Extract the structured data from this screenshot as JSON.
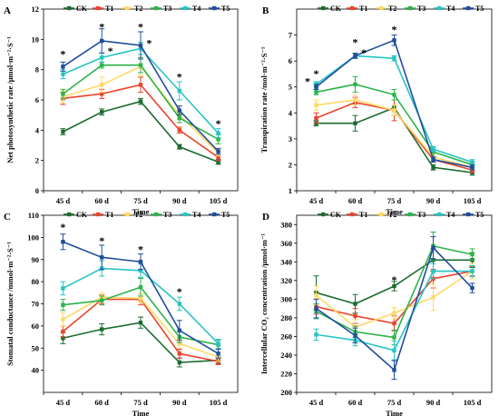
{
  "chart_data": [
    {
      "panel": "A",
      "type": "line",
      "categories": [
        "45 d",
        "60 d",
        "75 d",
        "90 d",
        "105 d"
      ],
      "xlabel": "Time",
      "ylabel": "Net photosynthetic rate /μmol·m⁻²·S⁻¹",
      "ylim": [
        0,
        12
      ],
      "yticks": [
        0,
        2,
        4,
        6,
        8,
        10,
        12
      ],
      "legend": "top",
      "series": [
        {
          "name": "CK",
          "color": "#1b6b2f",
          "values": [
            3.9,
            5.2,
            5.9,
            2.9,
            1.9
          ],
          "errors": [
            0.2,
            0.2,
            0.2,
            0.15,
            0.15
          ]
        },
        {
          "name": "T1",
          "color": "#e8452c",
          "values": [
            6.1,
            6.4,
            7.0,
            4.0,
            2.2
          ],
          "errors": [
            0.4,
            0.3,
            0.5,
            0.2,
            0.2
          ]
        },
        {
          "name": "T2",
          "color": "#ffd966",
          "values": [
            6.2,
            7.0,
            8.2,
            5.0,
            2.5
          ],
          "errors": [
            0.4,
            0.5,
            0.6,
            0.3,
            0.2
          ]
        },
        {
          "name": "T3",
          "color": "#2db34a",
          "values": [
            6.4,
            8.3,
            8.3,
            4.8,
            3.4
          ],
          "errors": [
            0.3,
            0.2,
            0.5,
            0.3,
            0.3
          ]
        },
        {
          "name": "T4",
          "color": "#27c4c4",
          "values": [
            7.7,
            8.8,
            9.4,
            6.6,
            3.8
          ],
          "errors": [
            0.3,
            0.3,
            0.4,
            0.6,
            0.3
          ]
        },
        {
          "name": "T5",
          "color": "#1f4e9c",
          "values": [
            8.2,
            9.9,
            9.6,
            5.3,
            2.6
          ],
          "errors": [
            0.3,
            0.8,
            0.9,
            0.3,
            0.2
          ]
        }
      ],
      "markers": [
        {
          "x": "45 d",
          "y": 9.1,
          "label": "*"
        },
        {
          "x": "60 d",
          "y": 10.9,
          "label": "*"
        },
        {
          "x": "60 d",
          "y": 9.3,
          "label": "*",
          "dx": 0.22
        },
        {
          "x": "75 d",
          "y": 10.9,
          "label": "*"
        },
        {
          "x": "75 d",
          "y": 9.8,
          "label": "*",
          "dx": 0.22
        },
        {
          "x": "90 d",
          "y": 7.6,
          "label": "*"
        },
        {
          "x": "105 d",
          "y": 4.5,
          "label": "*"
        }
      ]
    },
    {
      "panel": "B",
      "type": "line",
      "categories": [
        "45 d",
        "60 d",
        "75 d",
        "90 d",
        "105 d"
      ],
      "xlabel": "Time",
      "ylabel": "Transpiration rate /mol·m⁻²·S⁻¹",
      "ylim": [
        1,
        8
      ],
      "yticks": [
        1,
        2,
        3,
        4,
        5,
        6,
        7
      ],
      "legend": "top",
      "series": [
        {
          "name": "CK",
          "color": "#1b6b2f",
          "values": [
            3.6,
            3.6,
            4.2,
            1.9,
            1.7
          ],
          "errors": [
            0.1,
            0.3,
            0.3,
            0.1,
            0.1
          ]
        },
        {
          "name": "T1",
          "color": "#e8452c",
          "values": [
            3.8,
            4.4,
            4.1,
            2.2,
            1.8
          ],
          "errors": [
            0.2,
            0.2,
            0.4,
            0.1,
            0.1
          ]
        },
        {
          "name": "T2",
          "color": "#ffd966",
          "values": [
            4.3,
            4.5,
            4.1,
            2.3,
            1.9
          ],
          "errors": [
            0.2,
            0.2,
            0.2,
            0.1,
            0.1
          ]
        },
        {
          "name": "T3",
          "color": "#2db34a",
          "values": [
            4.8,
            5.1,
            4.7,
            2.5,
            2.0
          ],
          "errors": [
            0.1,
            0.3,
            0.2,
            0.2,
            0.1
          ]
        },
        {
          "name": "T4",
          "color": "#27c4c4",
          "values": [
            5.1,
            6.2,
            6.1,
            2.6,
            2.1
          ],
          "errors": [
            0.1,
            0.1,
            0.1,
            0.1,
            0.1
          ]
        },
        {
          "name": "T5",
          "color": "#1f4e9c",
          "values": [
            5.0,
            6.2,
            6.8,
            2.2,
            1.9
          ],
          "errors": [
            0.1,
            0.1,
            0.2,
            0.1,
            0.1
          ]
        }
      ],
      "markers": [
        {
          "x": "45 d",
          "y": 5.25,
          "label": "*",
          "dx": -0.22
        },
        {
          "x": "45 d",
          "y": 5.55,
          "label": "*"
        },
        {
          "x": "60 d",
          "y": 6.75,
          "label": "*"
        },
        {
          "x": "60 d",
          "y": 6.35,
          "label": "*",
          "dx": 0.22
        },
        {
          "x": "75 d",
          "y": 7.25,
          "label": "*"
        }
      ]
    },
    {
      "panel": "C",
      "type": "line",
      "categories": [
        "45 d",
        "60 d",
        "75 d",
        "90 d",
        "105 d"
      ],
      "xlabel": "Time",
      "ylabel": "Stomatal conductance /mmol·m⁻²·S⁻¹",
      "ylim": [
        30,
        110
      ],
      "yticks": [
        40,
        50,
        60,
        70,
        80,
        90,
        100,
        110
      ],
      "legend": "top",
      "series": [
        {
          "name": "CK",
          "color": "#1b6b2f",
          "values": [
            54.5,
            58.5,
            61.5,
            43.5,
            44.5
          ],
          "errors": [
            2.5,
            2.5,
            2.5,
            2.0,
            1.5
          ]
        },
        {
          "name": "T1",
          "color": "#e8452c",
          "values": [
            57.5,
            72.0,
            72.0,
            47.5,
            44.0
          ],
          "errors": [
            2.5,
            2.0,
            2.5,
            2.0,
            1.5
          ]
        },
        {
          "name": "T2",
          "color": "#ffd966",
          "values": [
            63.0,
            73.0,
            72.5,
            52.0,
            46.0
          ],
          "errors": [
            3.0,
            2.0,
            2.0,
            2.0,
            2.0
          ]
        },
        {
          "name": "T3",
          "color": "#2db34a",
          "values": [
            69.5,
            71.5,
            77.5,
            55.0,
            51.5
          ],
          "errors": [
            2.5,
            2.0,
            4.0,
            2.5,
            2.0
          ]
        },
        {
          "name": "T4",
          "color": "#27c4c4",
          "values": [
            77.0,
            86.0,
            85.0,
            70.0,
            52.0
          ],
          "errors": [
            3.0,
            3.5,
            3.0,
            3.0,
            2.0
          ]
        },
        {
          "name": "T5",
          "color": "#1f4e9c",
          "values": [
            98.0,
            91.0,
            89.0,
            58.0,
            47.5
          ],
          "errors": [
            3.5,
            5.5,
            3.5,
            4.5,
            2.0
          ]
        }
      ],
      "markers": [
        {
          "x": "45 d",
          "y": 105,
          "label": "*"
        },
        {
          "x": "60 d",
          "y": 99,
          "label": "*"
        },
        {
          "x": "75 d",
          "y": 95,
          "label": "*"
        },
        {
          "x": "90 d",
          "y": 76,
          "label": "*"
        }
      ]
    },
    {
      "panel": "D",
      "type": "line",
      "categories": [
        "45 d",
        "60 d",
        "75 d",
        "90 d",
        "105 d"
      ],
      "xlabel": "Time",
      "ylabel": "Intercellular CO₂ concentration /μmol·m⁻¹",
      "ylim": [
        200,
        390
      ],
      "yticks": [
        200,
        220,
        240,
        260,
        280,
        300,
        320,
        340,
        360,
        380
      ],
      "legend": "top",
      "series": [
        {
          "name": "CK",
          "color": "#1b6b2f",
          "values": [
            307,
            295,
            314,
            342,
            342
          ],
          "errors": [
            18,
            10,
            5,
            12,
            8
          ]
        },
        {
          "name": "T1",
          "color": "#e8452c",
          "values": [
            292,
            282,
            274,
            322,
            330
          ],
          "errors": [
            8,
            8,
            8,
            10,
            5
          ]
        },
        {
          "name": "T2",
          "color": "#ffd966",
          "values": [
            304,
            270,
            285,
            302,
            330
          ],
          "errors": [
            10,
            8,
            6,
            14,
            8
          ]
        },
        {
          "name": "T3",
          "color": "#2db34a",
          "values": [
            287,
            265,
            259,
            357,
            348
          ],
          "errors": [
            8,
            6,
            8,
            15,
            6
          ]
        },
        {
          "name": "T4",
          "color": "#27c4c4",
          "values": [
            262,
            256,
            245,
            330,
            330
          ],
          "errors": [
            6,
            6,
            10,
            8,
            6
          ]
        },
        {
          "name": "T5",
          "color": "#1f4e9c",
          "values": [
            290,
            261,
            224,
            355,
            312
          ],
          "errors": [
            10,
            8,
            10,
            12,
            5
          ]
        }
      ],
      "markers": [
        {
          "x": "75 d",
          "y": 322,
          "label": "*"
        }
      ]
    }
  ]
}
